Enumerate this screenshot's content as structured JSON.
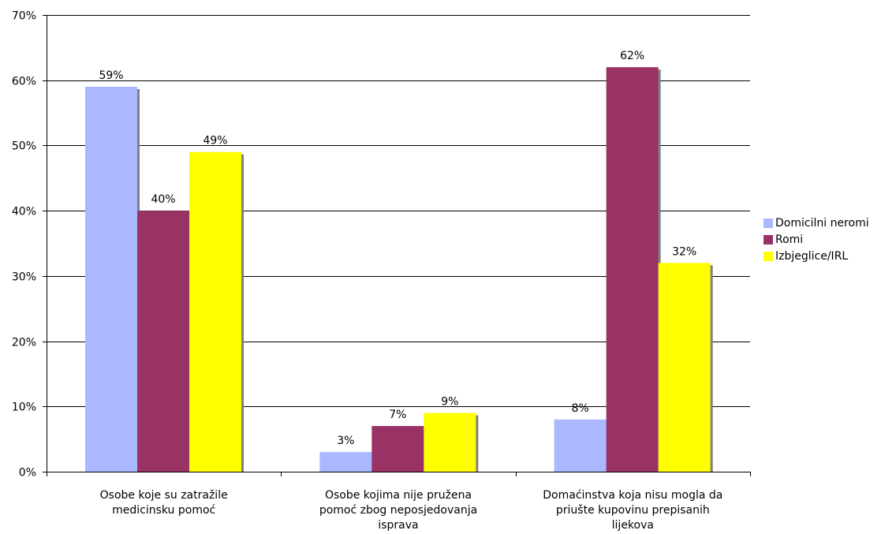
{
  "chart_data": {
    "type": "bar",
    "categories": [
      [
        "Osobe koje su zatražile",
        "medicinsku pomoć"
      ],
      [
        "Osobe kojima nije pružena",
        "pomoć zbog neposjedovanja",
        "isprava"
      ],
      [
        "Domaćinstva koja nisu mogla da",
        "priušte kupovinu prepisanih",
        "lijekova"
      ]
    ],
    "series": [
      {
        "name": "Domicilni neromi",
        "color": "#aab8ff",
        "values": [
          59,
          3,
          8
        ],
        "labels": [
          "59%",
          "3%",
          "8%"
        ]
      },
      {
        "name": "Romi",
        "color": "#993366",
        "values": [
          40,
          7,
          62
        ],
        "labels": [
          "40%",
          "7%",
          "62%"
        ]
      },
      {
        "name": "Izbjeglice/IRL",
        "color": "#ffff00",
        "values": [
          49,
          9,
          32
        ],
        "labels": [
          "49%",
          "9%",
          "32%"
        ]
      }
    ],
    "y_ticks": [
      "0%",
      "10%",
      "20%",
      "30%",
      "40%",
      "50%",
      "60%",
      "70%"
    ],
    "ylim": [
      0,
      70
    ],
    "grid": true,
    "legend_position": "right"
  }
}
